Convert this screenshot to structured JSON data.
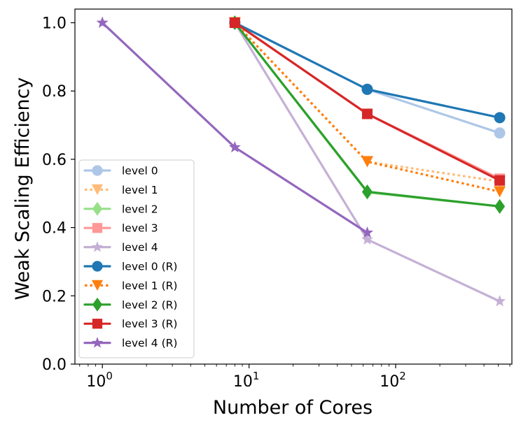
{
  "chart_data": {
    "type": "line",
    "title": "",
    "xlabel": "Number of Cores",
    "ylabel": "Weak Scaling Efficiency",
    "xscale": "log",
    "xlim": [
      0.65,
      620
    ],
    "ylim": [
      0.0,
      1.04
    ],
    "x_ticks": [
      {
        "value": 1,
        "base": "10",
        "exp": "0"
      },
      {
        "value": 10,
        "base": "10",
        "exp": "1"
      },
      {
        "value": 100,
        "base": "10",
        "exp": "2"
      }
    ],
    "y_ticks": [
      {
        "value": 0.0,
        "label": "0.0"
      },
      {
        "value": 0.2,
        "label": "0.2"
      },
      {
        "value": 0.4,
        "label": "0.4"
      },
      {
        "value": 0.6,
        "label": "0.6"
      },
      {
        "value": 0.8,
        "label": "0.8"
      },
      {
        "value": 1.0,
        "label": "1.0"
      }
    ],
    "legend_position": "lower-left",
    "series": [
      {
        "name": "level 0",
        "color": "#aec7e8",
        "marker": "circle",
        "dash": "solid",
        "x": [
          8,
          64,
          512
        ],
        "values": [
          1.0,
          0.805,
          0.677
        ]
      },
      {
        "name": "level 1",
        "color": "#ffbb78",
        "marker": "triangle-down",
        "dash": "dotted",
        "x": [
          8,
          64,
          512
        ],
        "values": [
          1.0,
          0.593,
          0.535
        ]
      },
      {
        "name": "level 2",
        "color": "#98df8a",
        "marker": "diamond",
        "dash": "solid",
        "x": [
          8,
          64,
          512
        ],
        "values": [
          1.0,
          0.503,
          0.462
        ]
      },
      {
        "name": "level 3",
        "color": "#ff9896",
        "marker": "square",
        "dash": "solid",
        "x": [
          8,
          64,
          512
        ],
        "values": [
          1.0,
          0.733,
          0.543
        ]
      },
      {
        "name": "level 4",
        "color": "#c5b0d5",
        "marker": "star",
        "dash": "solid",
        "x": [
          8,
          64,
          512
        ],
        "values": [
          1.0,
          0.365,
          0.184
        ]
      },
      {
        "name": "level 0 (R)",
        "color": "#1f77b4",
        "marker": "circle",
        "dash": "solid",
        "x": [
          8,
          64,
          512
        ],
        "values": [
          1.0,
          0.805,
          0.722
        ]
      },
      {
        "name": "level 1 (R)",
        "color": "#ff7f0e",
        "marker": "triangle-down",
        "dash": "dotted",
        "x": [
          8,
          64,
          512
        ],
        "values": [
          1.0,
          0.593,
          0.505
        ]
      },
      {
        "name": "level 2 (R)",
        "color": "#2ca02c",
        "marker": "diamond",
        "dash": "solid",
        "x": [
          8,
          64,
          512
        ],
        "values": [
          1.0,
          0.505,
          0.462
        ]
      },
      {
        "name": "level 3 (R)",
        "color": "#d62728",
        "marker": "square",
        "dash": "solid",
        "x": [
          8,
          64,
          512
        ],
        "values": [
          1.0,
          0.733,
          0.538
        ]
      },
      {
        "name": "level 4 (R)",
        "color": "#9467bd",
        "marker": "star",
        "dash": "solid",
        "x": [
          1,
          8,
          64
        ],
        "values": [
          1.0,
          0.635,
          0.385
        ]
      }
    ]
  }
}
